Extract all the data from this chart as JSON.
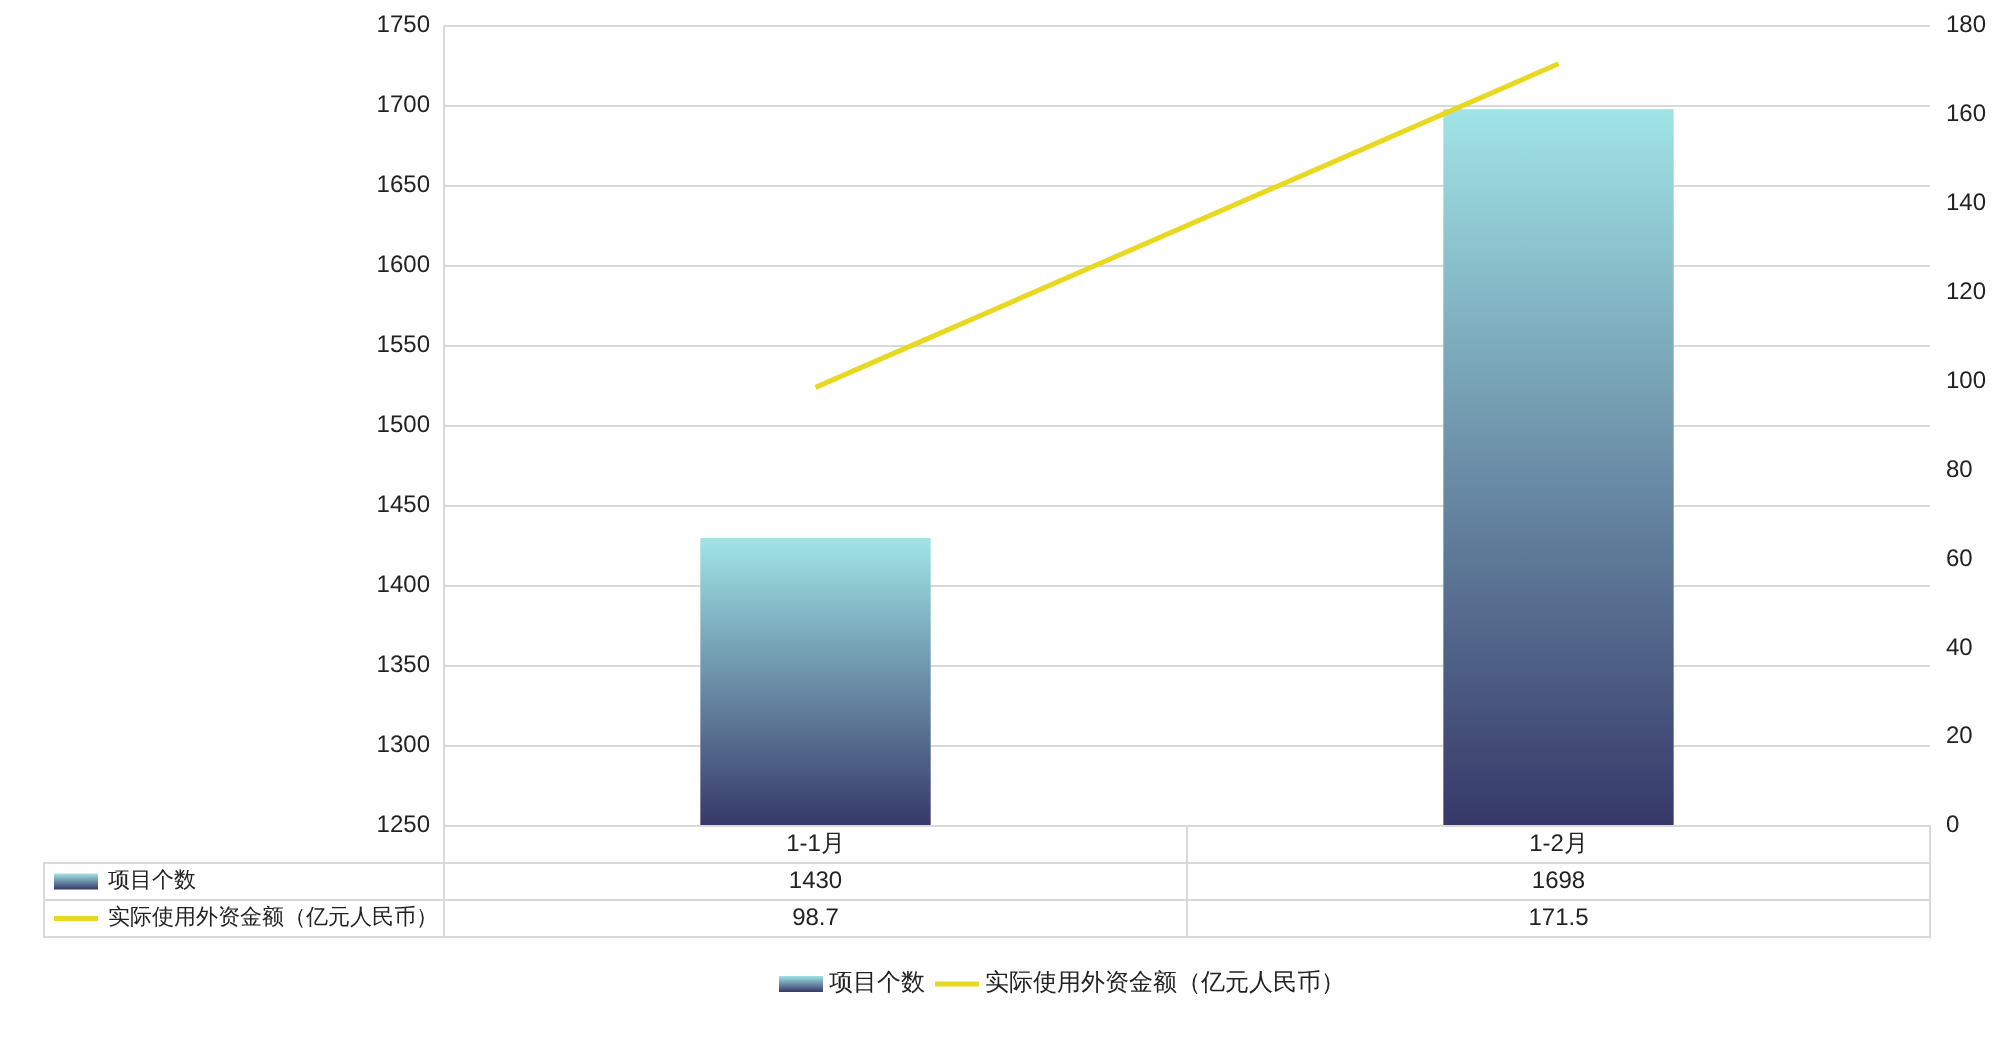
{
  "chart_data": {
    "type": "bar",
    "categories": [
      "1-1月",
      "1-2月"
    ],
    "series": [
      {
        "name": "项目个数",
        "color": "#a0e4e6",
        "values": [
          1430,
          1698
        ]
      },
      {
        "name": "实际使用外资金额（亿元人民币）",
        "color": "#e8d820",
        "type": "line",
        "axis": "y2",
        "values": [
          98.7,
          171.5
        ]
      }
    ],
    "ylim": [
      1250,
      1750
    ],
    "yticks": [
      1250,
      1300,
      1350,
      1400,
      1450,
      1500,
      1550,
      1600,
      1650,
      1700,
      1750
    ],
    "y2lim": [
      0,
      180
    ],
    "y2ticks": [
      0,
      20,
      40,
      60,
      80,
      100,
      120,
      140,
      160,
      180
    ],
    "grid": "y",
    "legend": "bottom",
    "data_labels": true
  }
}
